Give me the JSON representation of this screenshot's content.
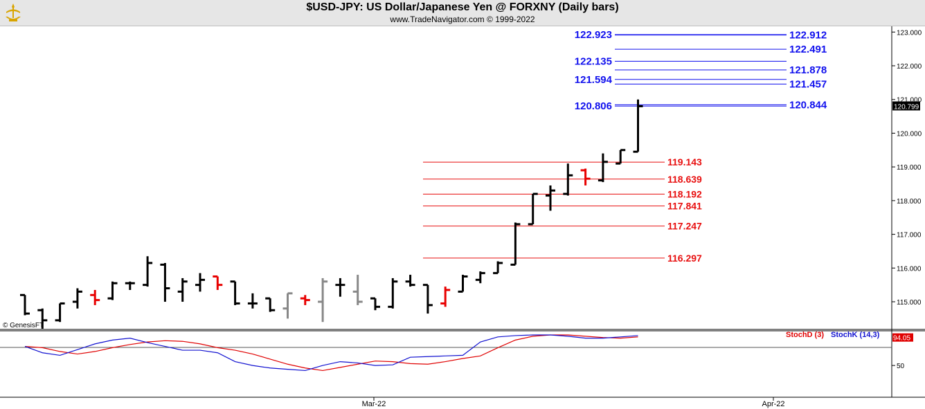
{
  "header": {
    "title": "$USD-JPY:  US Dollar/Japanese Yen @ FORXNY  (Daily bars)",
    "subtitle": "www.TradeNavigator.com © 1999-2022",
    "credit": "© GenesisFT"
  },
  "colors": {
    "up_bar": "#000000",
    "inside_bar": "#888888",
    "down_bar": "#e80000",
    "blue_levels": "#1111ee",
    "red_levels": "#e81010",
    "stoch_d": "#e00000",
    "stoch_k": "#1010d0"
  },
  "chart_data": [
    {
      "type": "ohlc",
      "title": "$USD-JPY:  US Dollar/Japanese Yen @ FORXNY  (Daily bars)",
      "y_ticks": [
        "115.000",
        "116.000",
        "117.000",
        "118.000",
        "119.000",
        "120.000",
        "121.000",
        "122.000",
        "123.000"
      ],
      "ylim": [
        114.2,
        123.15
      ],
      "x_ticks": [
        "Mar-22",
        "Apr-22"
      ],
      "last_price": "120.799",
      "bars": [
        {
          "o": 115.2,
          "h": 115.2,
          "l": 114.6,
          "c": 114.65,
          "color": "black"
        },
        {
          "o": 114.75,
          "h": 114.8,
          "l": 114.2,
          "c": 114.45,
          "color": "black"
        },
        {
          "o": 114.45,
          "h": 114.95,
          "l": 114.4,
          "c": 114.95,
          "color": "black"
        },
        {
          "o": 115.0,
          "h": 115.4,
          "l": 114.8,
          "c": 115.3,
          "color": "black"
        },
        {
          "o": 115.2,
          "h": 115.35,
          "l": 114.9,
          "c": 115.05,
          "color": "red"
        },
        {
          "o": 115.1,
          "h": 115.6,
          "l": 115.05,
          "c": 115.55,
          "color": "black"
        },
        {
          "o": 115.55,
          "h": 115.6,
          "l": 115.35,
          "c": 115.55,
          "color": "black"
        },
        {
          "o": 115.5,
          "h": 116.35,
          "l": 115.45,
          "c": 116.15,
          "color": "black"
        },
        {
          "o": 116.1,
          "h": 116.15,
          "l": 115.0,
          "c": 115.4,
          "color": "black"
        },
        {
          "o": 115.3,
          "h": 115.7,
          "l": 115.0,
          "c": 115.6,
          "color": "black"
        },
        {
          "o": 115.5,
          "h": 115.85,
          "l": 115.3,
          "c": 115.65,
          "color": "black"
        },
        {
          "o": 115.75,
          "h": 115.75,
          "l": 115.35,
          "c": 115.5,
          "color": "red"
        },
        {
          "o": 115.6,
          "h": 115.6,
          "l": 114.9,
          "c": 114.95,
          "color": "black"
        },
        {
          "o": 114.95,
          "h": 115.25,
          "l": 114.8,
          "c": 114.95,
          "color": "black"
        },
        {
          "o": 115.1,
          "h": 115.1,
          "l": 114.7,
          "c": 114.75,
          "color": "black"
        },
        {
          "o": 114.8,
          "h": 115.25,
          "l": 114.5,
          "c": 115.25,
          "color": "gray"
        },
        {
          "o": 115.1,
          "h": 115.2,
          "l": 114.9,
          "c": 115.05,
          "color": "red"
        },
        {
          "o": 115.0,
          "h": 115.7,
          "l": 114.4,
          "c": 115.6,
          "color": "gray"
        },
        {
          "o": 115.5,
          "h": 115.7,
          "l": 115.15,
          "c": 115.5,
          "color": "black"
        },
        {
          "o": 115.3,
          "h": 115.8,
          "l": 114.9,
          "c": 115.0,
          "color": "gray"
        },
        {
          "o": 115.1,
          "h": 115.1,
          "l": 114.75,
          "c": 114.85,
          "color": "black"
        },
        {
          "o": 114.85,
          "h": 115.7,
          "l": 114.8,
          "c": 115.6,
          "color": "black"
        },
        {
          "o": 115.6,
          "h": 115.8,
          "l": 115.45,
          "c": 115.5,
          "color": "black"
        },
        {
          "o": 115.5,
          "h": 115.5,
          "l": 114.65,
          "c": 114.9,
          "color": "black"
        },
        {
          "o": 114.95,
          "h": 115.45,
          "l": 114.85,
          "c": 115.35,
          "color": "red"
        },
        {
          "o": 115.3,
          "h": 115.8,
          "l": 115.3,
          "c": 115.75,
          "color": "black"
        },
        {
          "o": 115.65,
          "h": 115.9,
          "l": 115.55,
          "c": 115.85,
          "color": "black"
        },
        {
          "o": 115.85,
          "h": 116.2,
          "l": 115.85,
          "c": 116.15,
          "color": "black"
        },
        {
          "o": 116.1,
          "h": 117.35,
          "l": 116.1,
          "c": 117.3,
          "color": "black"
        },
        {
          "o": 117.3,
          "h": 118.2,
          "l": 117.3,
          "c": 118.2,
          "color": "black"
        },
        {
          "o": 118.15,
          "h": 118.45,
          "l": 117.7,
          "c": 118.3,
          "color": "black"
        },
        {
          "o": 118.2,
          "h": 119.1,
          "l": 118.15,
          "c": 118.75,
          "color": "black"
        },
        {
          "o": 118.9,
          "h": 118.95,
          "l": 118.45,
          "c": 118.65,
          "color": "red"
        },
        {
          "o": 118.6,
          "h": 119.4,
          "l": 118.55,
          "c": 119.15,
          "color": "black"
        },
        {
          "o": 119.1,
          "h": 119.5,
          "l": 119.1,
          "c": 119.5,
          "color": "black"
        },
        {
          "o": 119.45,
          "h": 121.0,
          "l": 119.45,
          "c": 120.8,
          "color": "black"
        }
      ],
      "levels_above": [
        {
          "side": "left",
          "label": "122.923",
          "value": 122.923
        },
        {
          "side": "right",
          "label": "122.912",
          "value": 122.912
        },
        {
          "side": "right",
          "label": "122.491",
          "value": 122.491
        },
        {
          "side": "left",
          "label": "122.135",
          "value": 122.135
        },
        {
          "side": "right",
          "label": "121.878",
          "value": 121.878
        },
        {
          "side": "left",
          "label": "121.594",
          "value": 121.594
        },
        {
          "side": "right",
          "label": "121.457",
          "value": 121.457
        },
        {
          "side": "left",
          "label": "120.806",
          "value": 120.806
        },
        {
          "side": "right",
          "label": "120.844",
          "value": 120.844
        }
      ],
      "levels_below": [
        {
          "label": "119.143",
          "value": 119.143
        },
        {
          "label": "118.639",
          "value": 118.639
        },
        {
          "label": "118.192",
          "value": 118.192
        },
        {
          "label": "117.841",
          "value": 117.841
        },
        {
          "label": "117.247",
          "value": 117.247
        },
        {
          "label": "116.297",
          "value": 116.297
        }
      ]
    },
    {
      "type": "line",
      "series": [
        {
          "name": "StochD (3)",
          "color": "#e00000",
          "values": [
            80,
            78,
            72,
            68,
            72,
            78,
            83,
            87,
            89,
            88,
            84,
            78,
            74,
            68,
            60,
            52,
            46,
            42,
            47,
            52,
            57,
            56,
            53,
            52,
            56,
            61,
            65,
            78,
            90,
            96,
            98,
            98,
            96,
            94,
            93,
            95
          ]
        },
        {
          "name": "StochK (14,3)",
          "color": "#1010d0",
          "values": [
            80,
            70,
            66,
            75,
            84,
            90,
            93,
            86,
            80,
            74,
            74,
            70,
            56,
            50,
            46,
            44,
            42,
            50,
            56,
            54,
            50,
            51,
            63,
            64,
            65,
            66,
            87,
            95,
            97,
            98,
            98,
            96,
            93,
            93,
            95,
            97
          ]
        }
      ],
      "legend": [
        "StochD (3)",
        "StochK (14,3)"
      ],
      "y_ticks": [
        "50"
      ],
      "last_value": "94.05"
    }
  ]
}
